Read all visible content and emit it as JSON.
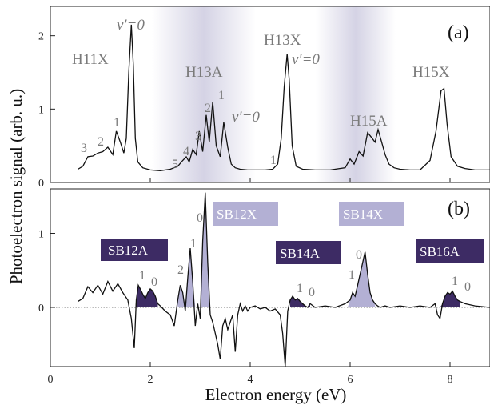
{
  "chart_data": [
    {
      "panel": "(a)",
      "type": "line",
      "xlabel": "Electron energy (eV)",
      "ylabel": "Photoelectron signal (arb. u.)",
      "xlim": [
        0,
        8.8
      ],
      "ylim": [
        0,
        2.4
      ],
      "yticks": [
        "0",
        "1",
        "2"
      ],
      "xticks": [
        "0",
        "2",
        "4",
        "6",
        "8"
      ],
      "series": [
        {
          "x": [
            0.55,
            0.65,
            0.75,
            0.85,
            0.95,
            1.05,
            1.15,
            1.25,
            1.32,
            1.4,
            1.47,
            1.52,
            1.57,
            1.62,
            1.66,
            1.7,
            1.75,
            1.85,
            2.0,
            2.2,
            2.4,
            2.55,
            2.65,
            2.72,
            2.78,
            2.85,
            2.92,
            2.98,
            3.05,
            3.12,
            3.18,
            3.25,
            3.32,
            3.4,
            3.47,
            3.55,
            3.62,
            3.7,
            3.8,
            3.95,
            4.1,
            4.3,
            4.45,
            4.55,
            4.62,
            4.68,
            4.74,
            4.78,
            4.84,
            4.92,
            5.05,
            5.3,
            5.6,
            5.9,
            6.0,
            6.08,
            6.18,
            6.26,
            6.35,
            6.42,
            6.5,
            6.56,
            6.62,
            6.7,
            6.78,
            6.88,
            7.0,
            7.2,
            7.4,
            7.6,
            7.72,
            7.82,
            7.88,
            7.94,
            8.02,
            8.15,
            8.3,
            8.5,
            8.8
          ],
          "y": [
            0.18,
            0.22,
            0.35,
            0.36,
            0.4,
            0.42,
            0.48,
            0.38,
            0.7,
            0.55,
            0.4,
            0.6,
            1.5,
            2.15,
            1.6,
            0.6,
            0.28,
            0.2,
            0.17,
            0.16,
            0.18,
            0.22,
            0.3,
            0.35,
            0.28,
            0.45,
            0.38,
            0.7,
            0.42,
            0.92,
            0.55,
            1.1,
            0.5,
            0.35,
            0.82,
            0.48,
            0.25,
            0.2,
            0.18,
            0.17,
            0.17,
            0.17,
            0.18,
            0.25,
            0.6,
            1.3,
            1.75,
            1.4,
            0.5,
            0.22,
            0.18,
            0.17,
            0.17,
            0.2,
            0.32,
            0.25,
            0.42,
            0.36,
            0.68,
            0.62,
            0.55,
            0.72,
            0.58,
            0.38,
            0.25,
            0.2,
            0.18,
            0.17,
            0.17,
            0.3,
            0.7,
            1.25,
            1.28,
            0.8,
            0.35,
            0.22,
            0.19,
            0.17,
            0.17
          ]
        }
      ],
      "annotations": [
        "H11X",
        "v′=0",
        "3",
        "2",
        "1",
        "H13A",
        "5",
        "4",
        "3",
        "2",
        "1",
        "v′=0",
        "1",
        "H13X",
        "v′=0",
        "H15A",
        "H15X"
      ]
    },
    {
      "panel": "(b)",
      "type": "line",
      "xlabel": "Electron energy (eV)",
      "ylabel": "Photoelectron signal (arb. u.)",
      "xlim": [
        0,
        8.8
      ],
      "ylim": [
        -0.8,
        1.6
      ],
      "yticks": [
        "0",
        "1"
      ],
      "xticks": [
        "0",
        "2",
        "4",
        "6",
        "8"
      ],
      "series": [
        {
          "x": [
            0.55,
            0.65,
            0.75,
            0.85,
            0.95,
            1.05,
            1.15,
            1.25,
            1.35,
            1.45,
            1.55,
            1.62,
            1.68,
            1.72,
            1.76,
            1.8,
            1.85,
            1.9,
            1.95,
            2.0,
            2.05,
            2.1,
            2.15,
            2.2,
            2.3,
            2.4,
            2.48,
            2.55,
            2.6,
            2.65,
            2.7,
            2.75,
            2.8,
            2.85,
            2.9,
            2.95,
            3.0,
            3.05,
            3.1,
            3.15,
            3.2,
            3.25,
            3.3,
            3.35,
            3.4,
            3.45,
            3.5,
            3.55,
            3.6,
            3.65,
            3.7,
            3.75,
            3.8,
            3.85,
            3.9,
            3.95,
            4.0,
            4.1,
            4.2,
            4.3,
            4.4,
            4.5,
            4.6,
            4.65,
            4.7,
            4.75,
            4.8,
            4.85,
            4.9,
            4.95,
            5.0,
            5.05,
            5.1,
            5.15,
            5.2,
            5.3,
            5.5,
            5.7,
            5.9,
            6.0,
            6.05,
            6.1,
            6.15,
            6.2,
            6.25,
            6.3,
            6.35,
            6.4,
            6.45,
            6.5,
            6.55,
            6.6,
            6.7,
            6.8,
            7.0,
            7.2,
            7.4,
            7.6,
            7.7,
            7.75,
            7.8,
            7.85,
            7.9,
            7.95,
            8.0,
            8.05,
            8.1,
            8.15,
            8.2,
            8.3,
            8.5,
            8.8
          ],
          "y": [
            0.08,
            0.12,
            0.28,
            0.2,
            0.3,
            0.18,
            0.35,
            0.22,
            0.32,
            0.2,
            0.1,
            -0.15,
            -0.55,
            0.1,
            0.3,
            0.25,
            0.18,
            0.12,
            0.2,
            0.25,
            0.22,
            0.15,
            0.05,
            0.02,
            -0.05,
            -0.1,
            -0.25,
            0.1,
            0.3,
            0.2,
            -0.05,
            0.4,
            0.8,
            0.35,
            -0.25,
            0.05,
            -0.15,
            0.9,
            1.55,
            0.6,
            -0.1,
            -0.2,
            -0.35,
            -0.5,
            -0.7,
            -0.25,
            -0.15,
            -0.3,
            -0.2,
            -0.1,
            -0.6,
            -0.1,
            0.05,
            -0.05,
            0.02,
            -0.05,
            0.0,
            0.02,
            -0.02,
            0.0,
            -0.05,
            -0.02,
            -0.1,
            -0.35,
            -0.8,
            -0.05,
            0.1,
            0.15,
            0.1,
            0.12,
            0.08,
            0.05,
            0.02,
            0.0,
            0.05,
            0.0,
            0.02,
            0.0,
            0.05,
            0.1,
            0.2,
            0.15,
            0.3,
            0.45,
            0.6,
            0.75,
            0.45,
            0.2,
            0.1,
            0.05,
            0.02,
            0.0,
            0.02,
            0.0,
            0.02,
            0.0,
            0.02,
            0.0,
            0.05,
            -0.1,
            -0.15,
            0.05,
            0.15,
            0.2,
            0.18,
            0.22,
            0.15,
            0.1,
            0.08,
            0.05,
            0.02,
            0.0
          ]
        }
      ],
      "annotations": [
        "SB12A",
        "1",
        "0",
        "2",
        "1",
        "0",
        "SB12X",
        "SB14A",
        "1",
        "0",
        "1",
        "0",
        "SB14X",
        "SB16A",
        "1",
        "0"
      ]
    }
  ],
  "colors": {
    "curve": "#111111",
    "fill_A": "#3d2b64",
    "fill_X": "#b3b0d4",
    "annotation_gray": "#7a7a7a",
    "shade": "#cdcbe0"
  },
  "labels": {
    "panel_a": "(a)",
    "panel_b": "(b)",
    "ylabel": "Photoelectron signal (arb. u.)",
    "xlabel": "Electron energy (eV)",
    "a": {
      "h11x": "H11X",
      "v0_h11x": "v′=0",
      "n3": "3",
      "n2": "2",
      "n1": "1",
      "h13a": "H13A",
      "n5b": "5",
      "n4b": "4",
      "n3b": "3",
      "n2b": "2",
      "n1b": "1",
      "v0_h13a": "v′=0",
      "n1c": "1",
      "h13x": "H13X",
      "v0_h13x": "v′=0",
      "h15a": "H15A",
      "h15x": "H15X"
    },
    "b": {
      "sb12a": "SB12A",
      "sb12a_1": "1",
      "sb12a_0": "0",
      "sb12x_2": "2",
      "sb12x_1": "1",
      "sb12x_0": "0",
      "sb12x": "SB12X",
      "sb14a": "SB14A",
      "sb14a_1": "1",
      "sb14a_0": "0",
      "sb14x_1": "1",
      "sb14x_0": "0",
      "sb14x": "SB14X",
      "sb16a": "SB16A",
      "sb16a_1": "1",
      "sb16a_0": "0"
    }
  }
}
